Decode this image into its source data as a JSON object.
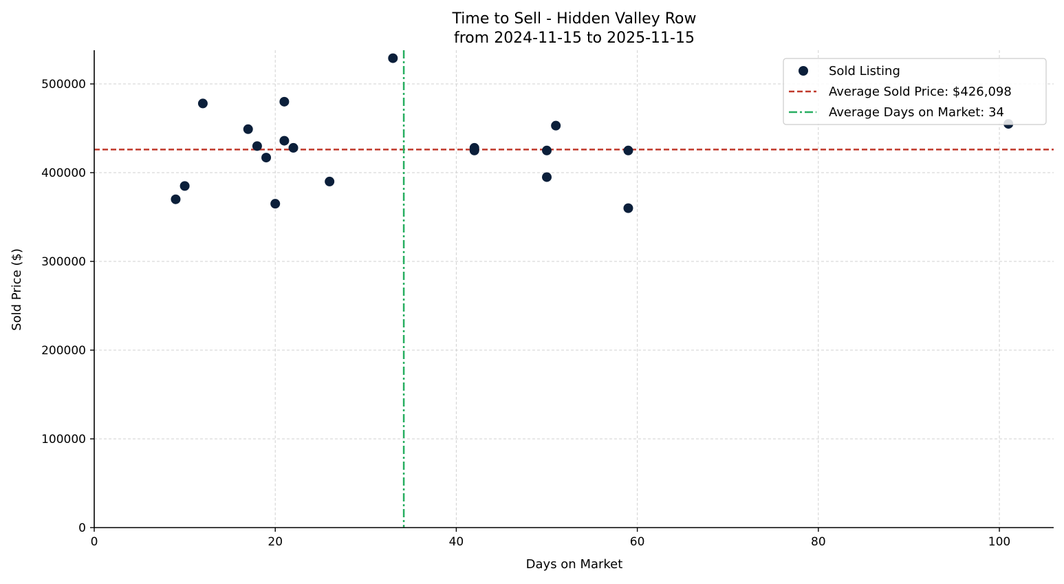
{
  "chart_data": {
    "type": "scatter",
    "title": "Time to Sell - Hidden Valley Row",
    "subtitle": "from 2024-11-15 to 2025-11-15",
    "xlabel": "Days on Market",
    "ylabel": "Sold Price ($)",
    "xlim": [
      0,
      106
    ],
    "ylim": [
      0,
      538000
    ],
    "xticks": [
      0,
      20,
      40,
      60,
      80,
      100
    ],
    "yticks": [
      0,
      100000,
      200000,
      300000,
      400000,
      500000
    ],
    "grid": true,
    "legend_position": "top-right",
    "series": [
      {
        "name": "Sold Listing",
        "color": "#0b1f3a",
        "points": [
          {
            "x": 9,
            "y": 370000
          },
          {
            "x": 10,
            "y": 385000
          },
          {
            "x": 12,
            "y": 478000
          },
          {
            "x": 17,
            "y": 449000
          },
          {
            "x": 18,
            "y": 430000
          },
          {
            "x": 19,
            "y": 417000
          },
          {
            "x": 20,
            "y": 365000
          },
          {
            "x": 21,
            "y": 480000
          },
          {
            "x": 21,
            "y": 436000
          },
          {
            "x": 22,
            "y": 428000
          },
          {
            "x": 26,
            "y": 390000
          },
          {
            "x": 33,
            "y": 529000
          },
          {
            "x": 42,
            "y": 428000
          },
          {
            "x": 42,
            "y": 425000
          },
          {
            "x": 50,
            "y": 425000
          },
          {
            "x": 50,
            "y": 395000
          },
          {
            "x": 51,
            "y": 453000
          },
          {
            "x": 59,
            "y": 425000
          },
          {
            "x": 59,
            "y": 360000
          },
          {
            "x": 101,
            "y": 455000
          }
        ]
      }
    ],
    "reference_lines": [
      {
        "name": "Average Sold Price: $426,098",
        "orientation": "horizontal",
        "value": 426098,
        "color": "#c0392b",
        "style": "dashed"
      },
      {
        "name": "Average Days on Market: 34",
        "orientation": "vertical",
        "value": 34.2,
        "color": "#27ae60",
        "style": "dashdot"
      }
    ]
  }
}
